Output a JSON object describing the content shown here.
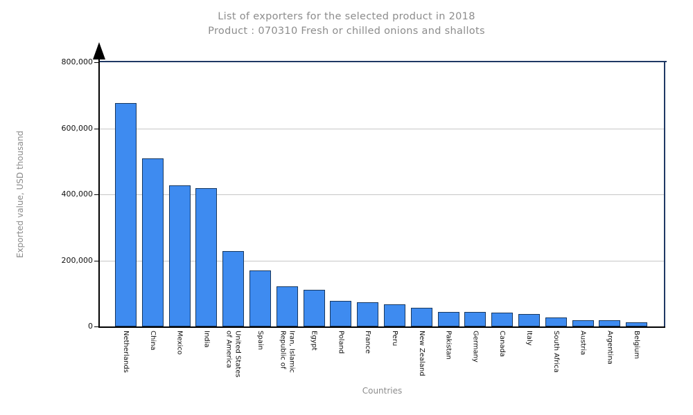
{
  "title": {
    "line1": "List of exporters for the selected product in 2018",
    "line2": "Product : 070310 Fresh or chilled onions and shallots"
  },
  "chart_data": {
    "type": "bar",
    "title": "List of exporters for the selected product in 2018",
    "subtitle": "Product : 070310 Fresh or chilled onions and shallots",
    "xlabel": "Countries",
    "ylabel": "Exported value, USD thousand",
    "ylim": [
      0,
      800000
    ],
    "yticks": [
      0,
      200000,
      400000,
      600000,
      800000
    ],
    "ytick_labels": [
      "0",
      "200,000",
      "400,000",
      "600,000",
      "800,000"
    ],
    "grid": "horizontal",
    "legend": "none",
    "categories": [
      "Netherlands",
      "China",
      "Mexico",
      "India",
      "United States\nof America",
      "Spain",
      "Iran, Islamic\nRepublic of",
      "Egypt",
      "Poland",
      "France",
      "Peru",
      "New Zealand",
      "Pakistan",
      "Germany",
      "Canada",
      "Italy",
      "South Africa",
      "Austria",
      "Argentina",
      "Belgium"
    ],
    "values": [
      676000,
      509000,
      428000,
      418000,
      229000,
      170000,
      122000,
      111000,
      77000,
      74000,
      66000,
      57000,
      44000,
      43000,
      41000,
      38000,
      27000,
      18000,
      18000,
      13000
    ],
    "colors": {
      "bar_fill": "#3e8bf0",
      "bar_border": "#17375e",
      "frame": "#1f3864",
      "gridline": "#c6c6c6",
      "axis": "#000000",
      "title_text": "#8c8c8c",
      "tick_text": "#111111"
    }
  }
}
